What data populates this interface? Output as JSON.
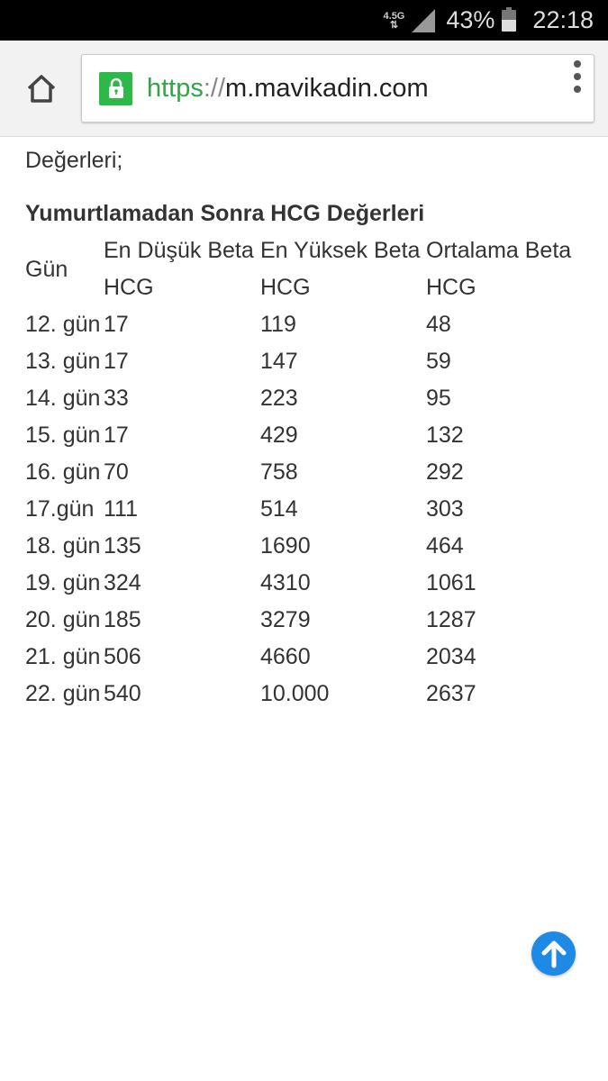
{
  "status_bar": {
    "network": "4.5G",
    "battery": "43%",
    "time": "22:18"
  },
  "browser": {
    "url_scheme": "https",
    "url_sep": "://",
    "url_host": "m.mavikadin.com"
  },
  "content": {
    "intro": "Değerleri;",
    "table_title": "Yumurtlamadan Sonra HCG Değerleri",
    "headers": [
      "Gün",
      "En Düşük Beta HCG",
      "En Yüksek Beta HCG",
      "Ortalama Beta HCG"
    ],
    "rows": [
      [
        "12. gün",
        "17",
        "119",
        "48"
      ],
      [
        "13. gün",
        "17",
        "147",
        "59"
      ],
      [
        "14. gün",
        "33",
        "223",
        "95"
      ],
      [
        "15. gün",
        "17",
        "429",
        "132"
      ],
      [
        "16. gün",
        "70",
        "758",
        "292"
      ],
      [
        "17.gün",
        "111",
        "514",
        "303"
      ],
      [
        "18. gün",
        "135",
        "1690",
        "464"
      ],
      [
        "19. gün",
        "324",
        "4310",
        "1061"
      ],
      [
        "20. gün",
        "185",
        "3279",
        "1287"
      ],
      [
        "21. gün",
        "506",
        "4660",
        "2034"
      ],
      [
        "22. gün",
        "540",
        "10.000",
        "2637"
      ]
    ]
  },
  "colors": {
    "secure": "#2db84a",
    "scroll_button": "#1e8ae6"
  }
}
